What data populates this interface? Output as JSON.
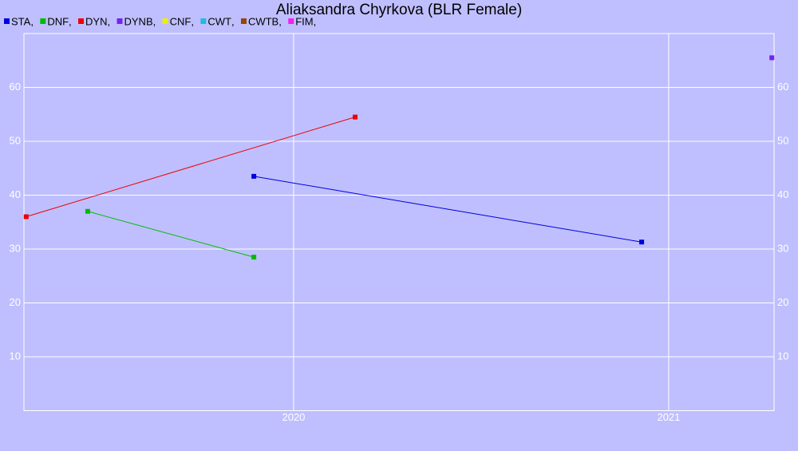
{
  "chart_data": {
    "type": "line",
    "title": "Aliaksandra Chyrkova (BLR Female)",
    "series": [
      {
        "name": "STA",
        "color": "#0000dd",
        "x": [
          2019.894,
          2020.928
        ],
        "values": [
          43.5,
          31.3
        ]
      },
      {
        "name": "DNF",
        "color": "#00bb00",
        "x": [
          2019.451,
          2019.894
        ],
        "values": [
          37,
          28.5
        ]
      },
      {
        "name": "DYN",
        "color": "#ee0000",
        "x": [
          2019.287,
          2020.164
        ],
        "values": [
          36,
          54.5
        ]
      },
      {
        "name": "DYNB",
        "color": "#7722ee",
        "x": [
          2021.275
        ],
        "values": [
          65.5
        ]
      },
      {
        "name": "CNF",
        "color": "#eeee00",
        "x": [],
        "values": []
      },
      {
        "name": "CWT",
        "color": "#22bbdd",
        "x": [],
        "values": []
      },
      {
        "name": "CWTB",
        "color": "#994400",
        "x": [],
        "values": []
      },
      {
        "name": "FIM",
        "color": "#ee22ee",
        "x": [],
        "values": []
      }
    ],
    "xlim": [
      2019.281,
      2021.281
    ],
    "xticks": [
      2020,
      2021
    ],
    "ylim": [
      0,
      70
    ],
    "yticks": [
      10,
      20,
      30,
      40,
      50,
      60
    ],
    "grid": true
  }
}
